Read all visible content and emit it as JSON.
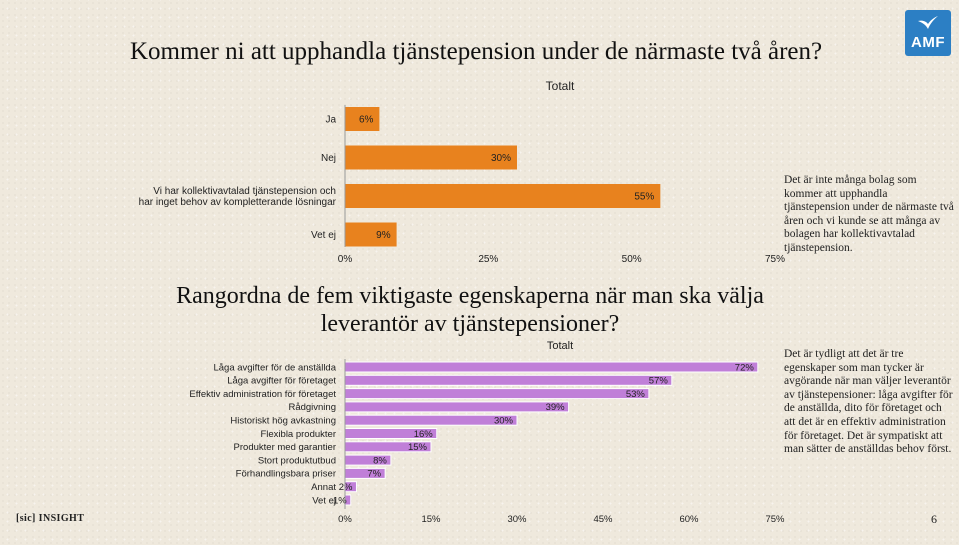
{
  "slide": {
    "title": "Kommer ni att upphandla tjänstepension under de närmaste två åren?",
    "title2": "Rangordna de fem viktigaste egenskaperna när man ska välja leverantör av tjänstepensioner?",
    "side_text_1": "Det är inte många bolag som kommer att upphandla tjänstepension under de närmaste två åren och vi kunde se att många av bolagen har kollektivavtalad tjänstepension.",
    "side_text_2": "Det är tydligt att det är tre egenskaper som man tycker är avgörande när man väljer leverantör av tjänstepensioner: låga avgifter för de anställda, dito för företaget och att det är en effektiv administration för företaget. Det är sympatiskt att man sätter de anställdas behov först.",
    "brand": "[sic] INSIGHT",
    "page_number": "6",
    "logo_text": "AMF",
    "logo_icon": "swallow-icon",
    "logo_color": "#2c7fc4"
  },
  "chart_data": [
    {
      "type": "bar",
      "orientation": "horizontal",
      "title": "Totalt",
      "categories": [
        "Ja",
        "Nej",
        "Vi har kollektivavtalad tjänstepension och har inget behov av kompletterande lösningar",
        "Vet ej"
      ],
      "values": [
        6,
        30,
        55,
        9
      ],
      "value_labels": [
        "6%",
        "30%",
        "55%",
        "9%"
      ],
      "xlim": [
        0,
        75
      ],
      "ticks": [
        "0%",
        "25%",
        "50%",
        "75%"
      ],
      "color": "#e8821e",
      "grid": false,
      "legend": "none"
    },
    {
      "type": "bar",
      "orientation": "horizontal",
      "title": "Totalt",
      "categories": [
        "Låga avgifter för de anställda",
        "Låga avgifter för företaget",
        "Effektiv administration för företaget",
        "Rådgivning",
        "Historiskt hög avkastning",
        "Flexibla produkter",
        "Produkter med garantier",
        "Stort produktutbud",
        "Förhandlingsbara priser",
        "Annat",
        "Vet ej"
      ],
      "values": [
        72,
        57,
        53,
        39,
        30,
        16,
        15,
        8,
        7,
        2,
        1
      ],
      "value_labels": [
        "72%",
        "57%",
        "53%",
        "39%",
        "30%",
        "16%",
        "15%",
        "8%",
        "7%",
        "2%",
        "1%"
      ],
      "xlim": [
        0,
        75
      ],
      "ticks": [
        "0%",
        "15%",
        "30%",
        "45%",
        "60%",
        "75%"
      ],
      "color": "#c07fd8",
      "grid": false,
      "legend": "none"
    }
  ]
}
